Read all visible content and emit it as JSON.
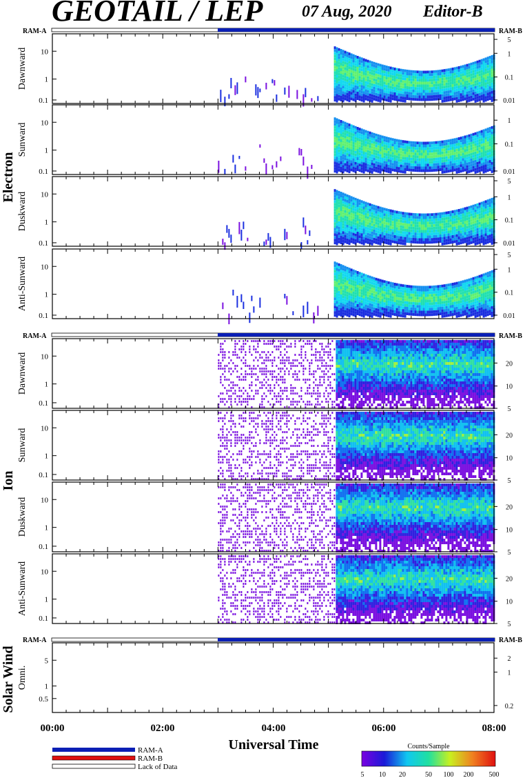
{
  "header": {
    "title": "GEOTAIL / LEP",
    "date": "07 Aug, 2020",
    "editor": "Editor-B"
  },
  "ram": {
    "a": "RAM-A",
    "b": "RAM-B"
  },
  "groups": {
    "electron": "Electron",
    "ion": "Ion",
    "solar_wind": "Solar Wind"
  },
  "xaxis": {
    "label": "Universal Time",
    "ticks": [
      "00:00",
      "02:00",
      "04:00",
      "06:00",
      "08:00"
    ]
  },
  "legend": {
    "ram_a": "RAM-A",
    "ram_b": "RAM-B",
    "lack": "Lack of Data"
  },
  "colorbar": {
    "title": "Counts/Sample",
    "ticks": [
      "5",
      "10",
      "20",
      "50",
      "100",
      "200",
      "500"
    ]
  },
  "colors": {
    "ram_a": "#0a1fb5",
    "ram_b": "#e01010"
  },
  "chart_data": {
    "type": "heatmap",
    "x_range_hours": [
      0,
      8
    ],
    "ram_a_start_hour": 3.0,
    "panels": [
      {
        "group": "Electron",
        "name": "Dawnward",
        "left_ticks": [
          "10",
          "1",
          "0.1"
        ],
        "right_ticks": [
          "5",
          "1",
          "0.1",
          "0.01"
        ]
      },
      {
        "group": "Electron",
        "name": "Sunward",
        "left_ticks": [
          "10",
          "1",
          "0.1"
        ],
        "right_ticks": [
          "1",
          "0.1",
          "0.01"
        ]
      },
      {
        "group": "Electron",
        "name": "Duskward",
        "left_ticks": [
          "10",
          "1",
          "0.1"
        ],
        "right_ticks": [
          "5",
          "1",
          "0.1",
          "0.01"
        ]
      },
      {
        "group": "Electron",
        "name": "Anti-Sunward",
        "left_ticks": [
          "10",
          "1",
          "0.1"
        ],
        "right_ticks": [
          "5",
          "1",
          "0.1",
          "0.01"
        ]
      },
      {
        "group": "Ion",
        "name": "Dawnward",
        "left_ticks": [
          "10",
          "1",
          "0.1"
        ],
        "right_ticks": [
          "20",
          "10",
          "5"
        ]
      },
      {
        "group": "Ion",
        "name": "Sunward",
        "left_ticks": [
          "10",
          "1",
          "0.1"
        ],
        "right_ticks": [
          "20",
          "10",
          "5"
        ]
      },
      {
        "group": "Ion",
        "name": "Duskward",
        "left_ticks": [
          "10",
          "1",
          "0.1"
        ],
        "right_ticks": [
          "20",
          "10",
          "5"
        ]
      },
      {
        "group": "Ion",
        "name": "Anti-Sunward",
        "left_ticks": [
          "10",
          "1",
          "0.1"
        ],
        "right_ticks": [
          "20",
          "10",
          "5"
        ]
      },
      {
        "group": "Solar Wind",
        "name": "Omni.",
        "left_ticks": [
          "5",
          "1",
          "0.5"
        ],
        "right_ticks": [
          "2",
          "1",
          "0.2"
        ]
      }
    ]
  }
}
